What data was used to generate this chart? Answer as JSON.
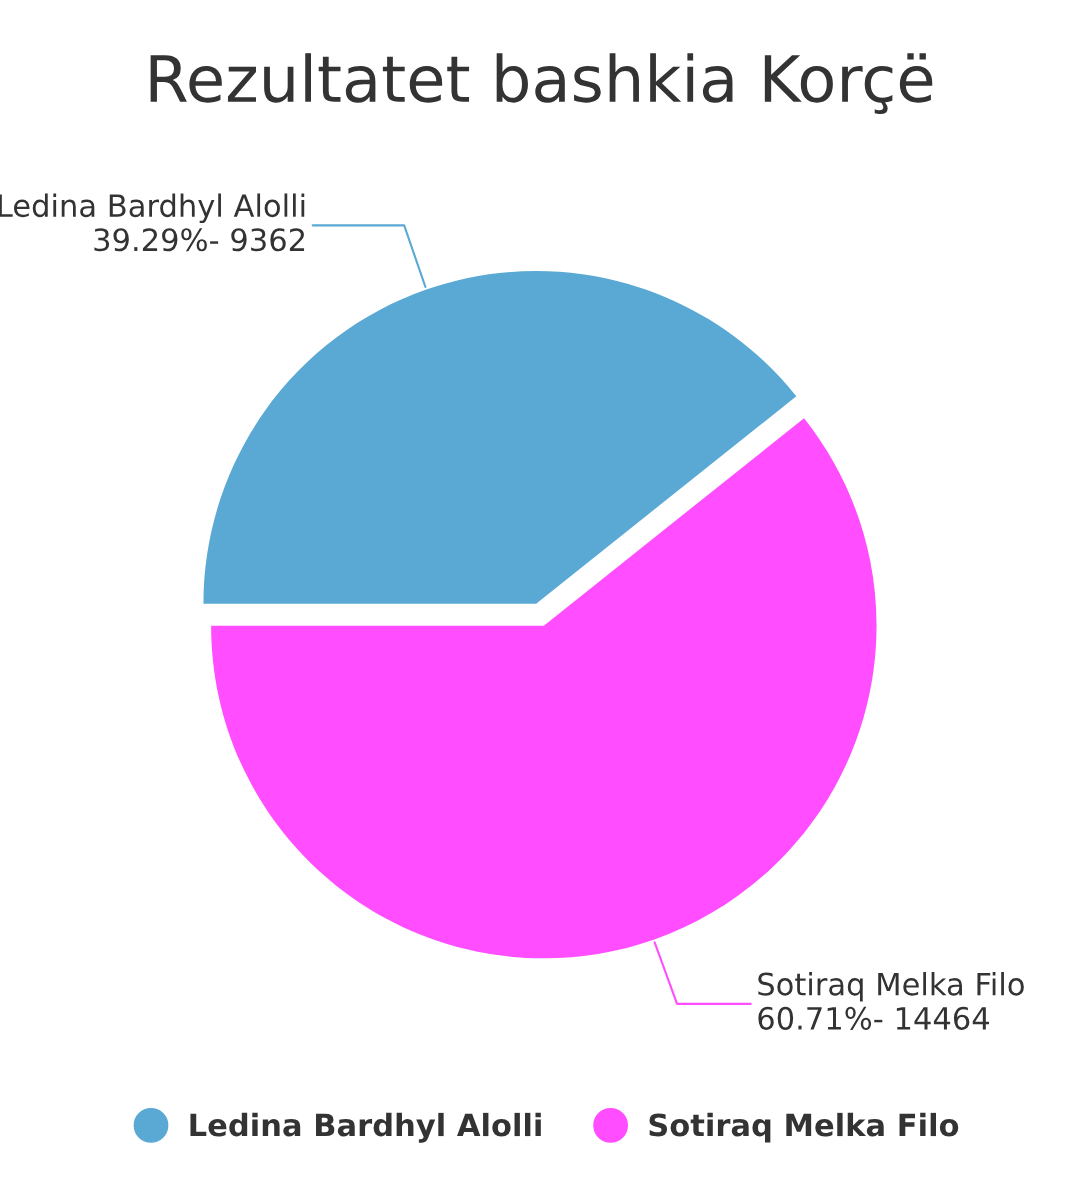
{
  "chart_data": {
    "type": "pie",
    "title": "Rezultatet bashkia Korçë",
    "categories": [
      "Ledina Bardhyl Alolli",
      "Sotiraq Melka Filo"
    ],
    "values": [
      39.29,
      60.71
    ],
    "colors": [
      "#5aa9d4",
      "#ff4dff"
    ],
    "value_labels": [
      "39.29%- 9362",
      "60.71%- 14464"
    ],
    "legend": "bottom"
  }
}
